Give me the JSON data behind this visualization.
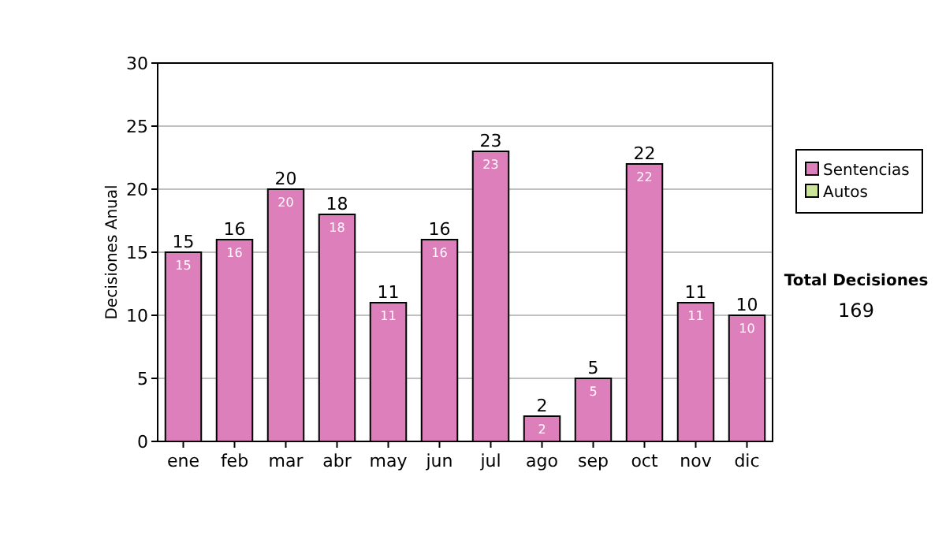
{
  "chart_data": {
    "type": "bar",
    "stacked": true,
    "ylabel": "Decisiones Anual",
    "categories": [
      "ene",
      "feb",
      "mar",
      "abr",
      "may",
      "jun",
      "jul",
      "ago",
      "sep",
      "oct",
      "nov",
      "dic"
    ],
    "series": [
      {
        "name": "Sentencias",
        "color": "#dd7fbb",
        "values": [
          15,
          16,
          20,
          18,
          11,
          16,
          23,
          2,
          5,
          22,
          11,
          10
        ],
        "value_labels": [
          "15",
          "16",
          "20",
          "18",
          "11",
          "16",
          "23",
          "2",
          "5",
          "22",
          "11",
          "10"
        ]
      },
      {
        "name": "Autos",
        "color": "#cce699",
        "values": [
          0,
          0,
          0,
          0,
          0,
          0,
          0,
          0,
          0,
          0,
          0,
          0
        ]
      }
    ],
    "totals": [
      "15",
      "16",
      "20",
      "18",
      "11",
      "16",
      "23",
      "2",
      "5",
      "22",
      "11",
      "10"
    ],
    "ylim": [
      0,
      30
    ],
    "yticks": [
      0,
      5,
      10,
      15,
      20,
      25,
      30
    ],
    "grid": "y",
    "legend": "right",
    "annotations": [
      "Total Decisiones",
      "169"
    ]
  }
}
